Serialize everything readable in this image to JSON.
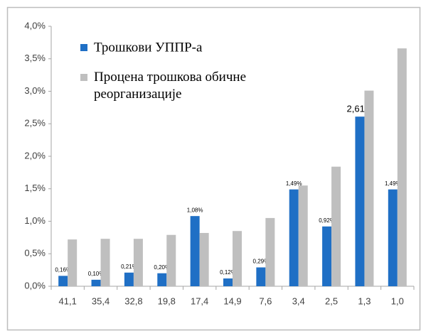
{
  "chart_data": {
    "type": "bar",
    "categories": [
      "41,1",
      "35,4",
      "32,8",
      "19,8",
      "17,4",
      "14,9",
      "7,6",
      "3,4",
      "2,5",
      "1,3",
      "1,0"
    ],
    "series": [
      {
        "name": "Трошкови УППР-а",
        "color": "#1f6fc5",
        "values": [
          0.16,
          0.1,
          0.21,
          0.2,
          1.08,
          0.12,
          0.29,
          1.49,
          0.92,
          2.61,
          1.49
        ],
        "value_labels": [
          "0,16%",
          "0,10%",
          "0,21%",
          "0,20%",
          "1,08%",
          "0,12%",
          "0,29%",
          "1,49%",
          "0,92%",
          "2,61%",
          "1,49%"
        ]
      },
      {
        "name": "Процена трошкова обичне реорганизације",
        "color": "#bfbfbf",
        "values": [
          0.72,
          0.73,
          0.73,
          0.79,
          0.82,
          0.85,
          1.05,
          1.55,
          1.84,
          3.01,
          3.66
        ]
      }
    ],
    "ylim": [
      0,
      4.0
    ],
    "yticks": [
      {
        "value": 0,
        "label": "0,0%"
      },
      {
        "value": 0.5,
        "label": "0,5%"
      },
      {
        "value": 1.0,
        "label": "1,0%"
      },
      {
        "value": 1.5,
        "label": "1,5%"
      },
      {
        "value": 2.0,
        "label": "2,0%"
      },
      {
        "value": 2.5,
        "label": "2,5%"
      },
      {
        "value": 3.0,
        "label": "3,0%"
      },
      {
        "value": 3.5,
        "label": "3,5%"
      },
      {
        "value": 4.0,
        "label": "4,0%"
      }
    ],
    "legend": "top-left"
  }
}
